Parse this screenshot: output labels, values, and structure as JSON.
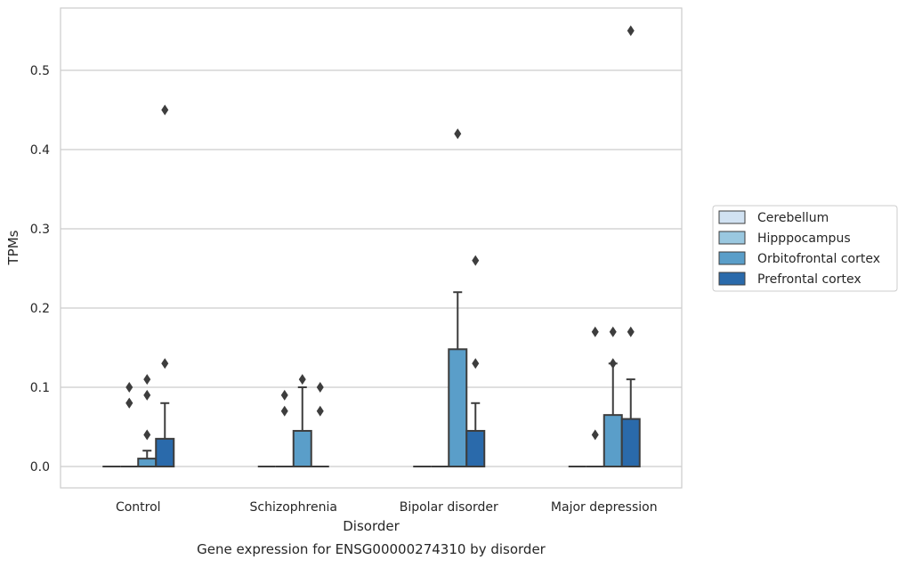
{
  "chart_data": {
    "type": "box",
    "title": "",
    "caption": "Gene expression for ENSG00000274310 by disorder",
    "xlabel": "Disorder",
    "ylabel": "TPMs",
    "ylim": [
      -0.027,
      0.58
    ],
    "yticks": [
      0.0,
      0.1,
      0.2,
      0.3,
      0.4,
      0.5
    ],
    "ytick_labels": [
      "0.0",
      "0.1",
      "0.2",
      "0.3",
      "0.4",
      "0.5"
    ],
    "grid": "horizontal",
    "legend_position": "right-outside",
    "categories": [
      "Control",
      "Schizophrenia",
      "Bipolar disorder",
      "Major depression"
    ],
    "series": [
      {
        "name": "Cerebellum",
        "color": "#d1e2f2",
        "boxes": [
          {
            "q1": 0,
            "median": 0,
            "q3": 0,
            "whisker_low": 0,
            "whisker_high": 0,
            "outliers": []
          },
          {
            "q1": 0,
            "median": 0,
            "q3": 0,
            "whisker_low": 0,
            "whisker_high": 0,
            "outliers": []
          },
          {
            "q1": 0,
            "median": 0,
            "q3": 0,
            "whisker_low": 0,
            "whisker_high": 0,
            "outliers": []
          },
          {
            "q1": 0,
            "median": 0,
            "q3": 0,
            "whisker_low": 0,
            "whisker_high": 0,
            "outliers": []
          }
        ]
      },
      {
        "name": "Hipppocampus",
        "color": "#9ac8e0",
        "boxes": [
          {
            "q1": 0,
            "median": 0,
            "q3": 0,
            "whisker_low": 0,
            "whisker_high": 0,
            "outliers": [
              0.08,
              0.08,
              0.1
            ]
          },
          {
            "q1": 0,
            "median": 0,
            "q3": 0,
            "whisker_low": 0,
            "whisker_high": 0,
            "outliers": [
              0.07,
              0.09
            ]
          },
          {
            "q1": 0,
            "median": 0,
            "q3": 0,
            "whisker_low": 0,
            "whisker_high": 0,
            "outliers": []
          },
          {
            "q1": 0,
            "median": 0,
            "q3": 0,
            "whisker_low": 0,
            "whisker_high": 0,
            "outliers": [
              0.04,
              0.17
            ]
          }
        ]
      },
      {
        "name": "Orbitofrontal cortex",
        "color": "#5a9ec9",
        "boxes": [
          {
            "q1": 0,
            "median": 0,
            "q3": 0.01,
            "whisker_low": 0,
            "whisker_high": 0.02,
            "outliers": [
              0.04,
              0.09,
              0.11
            ]
          },
          {
            "q1": 0,
            "median": 0,
            "q3": 0.045,
            "whisker_low": 0,
            "whisker_high": 0.1,
            "outliers": [
              0.11
            ]
          },
          {
            "q1": 0,
            "median": 0,
            "q3": 0.148,
            "whisker_low": 0,
            "whisker_high": 0.22,
            "outliers": [
              0.42
            ]
          },
          {
            "q1": 0,
            "median": 0,
            "q3": 0.065,
            "whisker_low": 0,
            "whisker_high": 0.13,
            "outliers": [
              0.13,
              0.17
            ]
          }
        ]
      },
      {
        "name": "Prefrontal cortex",
        "color": "#2a6aab",
        "boxes": [
          {
            "q1": 0,
            "median": 0,
            "q3": 0.035,
            "whisker_low": 0,
            "whisker_high": 0.08,
            "outliers": [
              0.13,
              0.45
            ]
          },
          {
            "q1": 0,
            "median": 0,
            "q3": 0,
            "whisker_low": 0,
            "whisker_high": 0,
            "outliers": [
              0.07,
              0.1
            ]
          },
          {
            "q1": 0,
            "median": 0,
            "q3": 0.045,
            "whisker_low": 0,
            "whisker_high": 0.08,
            "outliers": [
              0.13,
              0.26
            ]
          },
          {
            "q1": 0,
            "median": 0,
            "q3": 0.06,
            "whisker_low": 0,
            "whisker_high": 0.11,
            "outliers": [
              0.17,
              0.55
            ]
          }
        ]
      }
    ]
  }
}
